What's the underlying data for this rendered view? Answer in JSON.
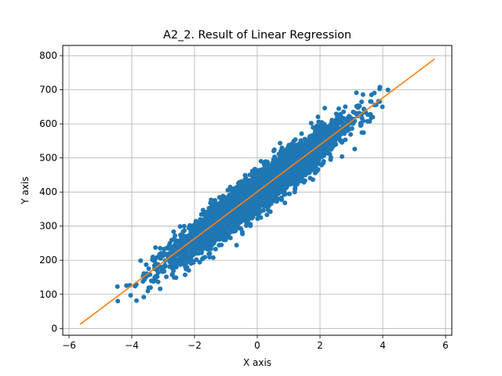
{
  "chart_data": {
    "type": "scatter",
    "title": "A2_2. Result of Linear Regression",
    "xlabel": "X axis",
    "ylabel": "Y axis",
    "xlim": [
      -6.2,
      6.2
    ],
    "ylim": [
      -20,
      830
    ],
    "xticks": [
      -6,
      -4,
      -2,
      0,
      2,
      4,
      6
    ],
    "yticks": [
      0,
      100,
      200,
      300,
      400,
      500,
      600,
      700,
      800
    ],
    "grid": true,
    "colors": {
      "scatter": "#1f77b4",
      "line": "#ff7f0e",
      "grid": "#b0b0b0"
    },
    "series": [
      {
        "kind": "scatter",
        "x_range": [
          -4.5,
          4.7
        ],
        "y_range": [
          70,
          740
        ],
        "scatter_trend": {
          "slope": 69,
          "intercept": 400
        },
        "band_half_width_y": 60,
        "marker": "circle"
      },
      {
        "kind": "line",
        "x": [
          -5.65,
          5.65
        ],
        "y": [
          12,
          790
        ]
      }
    ]
  }
}
